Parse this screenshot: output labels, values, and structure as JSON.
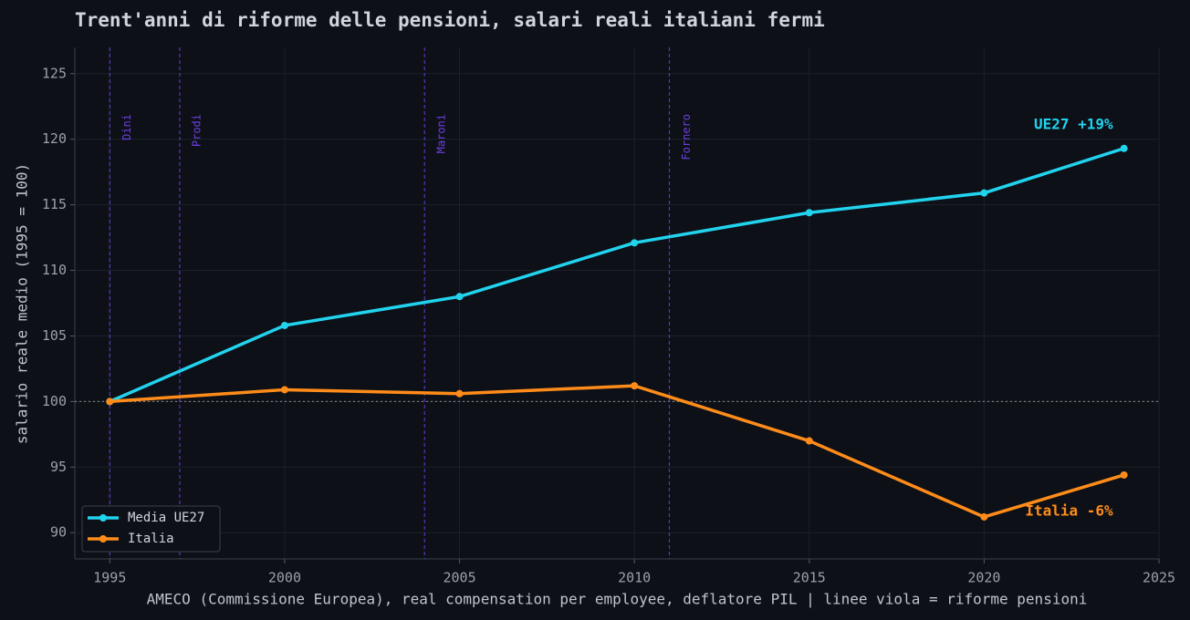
{
  "chart_data": {
    "type": "line",
    "title": "Trent'anni di riforme delle pensioni, salari reali italiani fermi",
    "y_label": "salario reale medio (1995 = 100)",
    "x_label": "AMECO (Commissione Europea), real compensation per employee, deflatore PIL  |  linee viola = riforme pensioni",
    "x": [
      1995,
      2000,
      2005,
      2010,
      2015,
      2020,
      2024
    ],
    "series": [
      {
        "name": "Media UE27",
        "color": "#22d3ee",
        "values": [
          100,
          105.8,
          108.0,
          112.1,
          114.4,
          115.9,
          119.3
        ]
      },
      {
        "name": "Italia",
        "color": "#ff8c1a",
        "values": [
          100,
          100.9,
          100.6,
          101.2,
          97.0,
          91.2,
          94.4
        ]
      }
    ],
    "annotations": [
      {
        "text": "UE27  +19%",
        "color": "#22d3ee"
      },
      {
        "text": "Italia  -6%",
        "color": "#ff8c1a"
      }
    ],
    "reforms": [
      {
        "year": 1995,
        "label": "Dini"
      },
      {
        "year": 1997,
        "label": "Prodi"
      },
      {
        "year": 2004,
        "label": "Maroni"
      },
      {
        "year": 2011,
        "label": "Fornero"
      }
    ],
    "reform_color": "#6d3fe0",
    "reference_line": 100,
    "xlim": [
      1994,
      2025
    ],
    "xticks": [
      1995,
      2000,
      2005,
      2010,
      2015,
      2020,
      2025
    ],
    "ylim": [
      88,
      127
    ],
    "yticks": [
      90,
      95,
      100,
      105,
      110,
      115,
      120,
      125
    ],
    "grid": true,
    "legend": "lower left"
  }
}
